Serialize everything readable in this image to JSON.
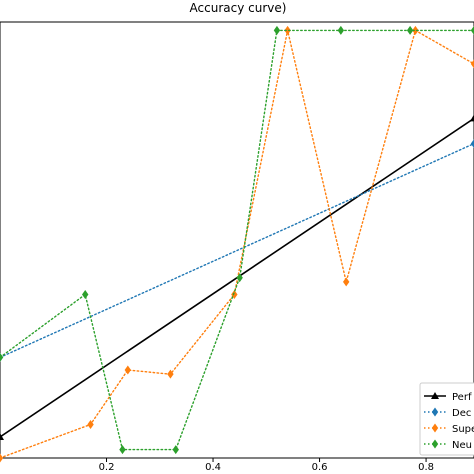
{
  "chart_data": {
    "type": "line",
    "title": "Accuracy curve)",
    "xlabel": "",
    "ylabel": "",
    "xlim": [
      0.0,
      0.89
    ],
    "ylim": [
      -0.02,
      1.02
    ],
    "x_ticks": [
      "0.2",
      "0.4",
      "0.6",
      "0.8"
    ],
    "x_tick_values": [
      0.2,
      0.4,
      0.6,
      0.8
    ],
    "grid": false,
    "legend_position": "bottom-right",
    "series": [
      {
        "name": "Perf",
        "color": "#000000",
        "style": "solid",
        "marker": "triangle",
        "x": [
          0.0,
          0.89
        ],
        "y": [
          0.03,
          0.79
        ]
      },
      {
        "name": "Dec",
        "color": "#1f77b4",
        "style": "dotted",
        "marker": "diamond",
        "x": [
          0.0,
          0.89
        ],
        "y": [
          0.22,
          0.73
        ]
      },
      {
        "name": "Supe",
        "color": "#ff7f0e",
        "style": "dotted",
        "marker": "diamond",
        "x": [
          0.0,
          0.17,
          0.24,
          0.32,
          0.44,
          0.54,
          0.65,
          0.78,
          0.89
        ],
        "y": [
          -0.02,
          0.06,
          0.19,
          0.18,
          0.37,
          1.0,
          0.4,
          1.0,
          0.92
        ]
      },
      {
        "name": "Neu",
        "color": "#2ca02c",
        "style": "dotted",
        "marker": "diamond",
        "x": [
          0.0,
          0.16,
          0.23,
          0.33,
          0.45,
          0.52,
          0.64,
          0.77,
          0.89
        ],
        "y": [
          0.22,
          0.37,
          0.0,
          0.0,
          0.41,
          1.0,
          1.0,
          1.0,
          1.0
        ]
      }
    ]
  }
}
